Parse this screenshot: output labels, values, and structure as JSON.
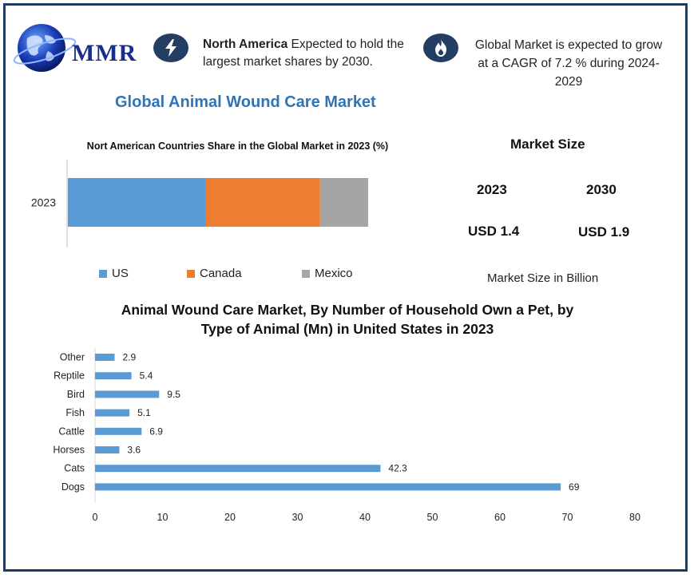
{
  "header": {
    "logo_text": "MMR",
    "highlight1": {
      "strong": "North America",
      "rest": " Expected to hold the largest market shares by 2030."
    },
    "highlight2": "Global Market is expected to grow at a CAGR of 7.2 % during 2024-2029"
  },
  "icons": {
    "highlight1": "lightning-icon",
    "highlight2": "flame-icon",
    "logo": "globe-icon"
  },
  "colors": {
    "us": "#5b9bd5",
    "canada": "#ed7d31",
    "mexico": "#a5a5a5",
    "accent": "#2e75b6",
    "frame": "#1f3b5e"
  },
  "main_title": "Global Animal Wound Care Market",
  "market_size": {
    "title": "Market Size",
    "years": [
      "2023",
      "2030"
    ],
    "values": [
      "USD 1.4",
      "USD 1.9"
    ],
    "unit": "Market Size in Billion"
  },
  "chart_data": [
    {
      "type": "bar",
      "orientation": "horizontal",
      "stacked": true,
      "title": "Nort American Countries Share in the Global Market in 2023 (%)",
      "categories": [
        "2023"
      ],
      "series": [
        {
          "name": "US",
          "values": [
            46
          ]
        },
        {
          "name": "Canada",
          "values": [
            38
          ]
        },
        {
          "name": "Mexico",
          "values": [
            16
          ]
        }
      ],
      "legend": "bottom"
    },
    {
      "type": "bar",
      "orientation": "horizontal",
      "title": "Animal Wound Care Market, By Number of Household Own a Pet, by Type of Animal (Mn) in United States in 2023",
      "categories": [
        "Other",
        "Reptile",
        "Bird",
        "Fish",
        "Cattle",
        "Horses",
        "Cats",
        "Dogs"
      ],
      "values": [
        2.9,
        5.4,
        9.5,
        5.1,
        6.9,
        3.6,
        42.3,
        69
      ],
      "xlim": [
        0,
        80
      ],
      "xticks": [
        0,
        10,
        20,
        30,
        40,
        50,
        60,
        70,
        80
      ]
    }
  ]
}
